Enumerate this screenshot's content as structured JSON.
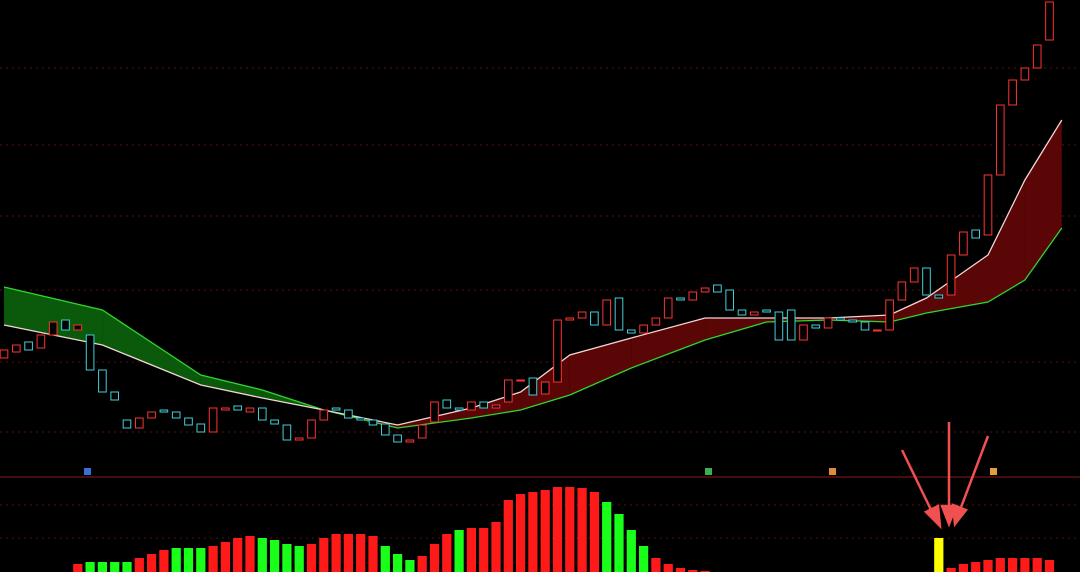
{
  "chart_data": [
    {
      "type": "candlestick",
      "x": [
        0,
        1,
        2,
        3,
        4,
        5,
        6,
        7,
        8,
        9,
        10,
        11,
        12,
        13,
        14,
        15,
        16,
        17,
        18,
        19,
        20,
        21,
        22,
        23,
        24,
        25,
        26,
        27,
        28,
        29,
        30,
        31,
        32,
        33,
        34,
        35,
        36,
        37,
        38,
        39,
        40,
        41,
        42,
        43,
        44,
        45,
        46,
        47,
        48,
        49,
        50,
        51,
        52,
        53,
        54,
        55,
        56,
        57,
        58,
        59,
        60,
        61,
        62,
        63,
        64,
        65,
        66,
        67,
        68,
        69,
        70,
        71,
        72,
        73,
        74,
        75,
        76,
        77,
        78,
        79,
        80,
        81,
        82,
        83,
        84,
        85
      ],
      "open": [
        122,
        128,
        138,
        132,
        145,
        160,
        150,
        145,
        110,
        88,
        60,
        52,
        62,
        70,
        68,
        62,
        56,
        48,
        70,
        74,
        68,
        72,
        60,
        55,
        40,
        42,
        60,
        72,
        70,
        62,
        60,
        56,
        45,
        38,
        42,
        58,
        80,
        72,
        70,
        78,
        72,
        78,
        100,
        102,
        86,
        98,
        160,
        162,
        168,
        155,
        182,
        150,
        147,
        155,
        162,
        182,
        180,
        188,
        195,
        190,
        170,
        165,
        170,
        168,
        170,
        140,
        155,
        152,
        162,
        160,
        158,
        150,
        150,
        180,
        198,
        212,
        185,
        185,
        225,
        250,
        245,
        305,
        375,
        400,
        412,
        440
      ],
      "close": [
        130,
        135,
        130,
        145,
        158,
        150,
        155,
        110,
        88,
        80,
        52,
        62,
        68,
        68,
        62,
        55,
        48,
        72,
        72,
        70,
        72,
        60,
        56,
        40,
        42,
        60,
        70,
        70,
        62,
        60,
        55,
        45,
        38,
        40,
        55,
        78,
        72,
        70,
        78,
        72,
        75,
        100,
        100,
        85,
        98,
        160,
        162,
        168,
        155,
        180,
        150,
        147,
        155,
        162,
        182,
        180,
        188,
        192,
        188,
        170,
        165,
        168,
        168,
        140,
        140,
        155,
        152,
        162,
        160,
        158,
        150,
        150,
        180,
        198,
        212,
        185,
        182,
        225,
        248,
        242,
        305,
        375,
        400,
        412,
        435,
        478
      ],
      "up_color": "#ff3232",
      "down_color": "#3fd0d8",
      "band": {
        "x": [
          0,
          8,
          16,
          21,
          26,
          32,
          38,
          42,
          46,
          51,
          57,
          62,
          67,
          72,
          75,
          80,
          83,
          86
        ],
        "fast": [
          155,
          135,
          95,
          82,
          70,
          55,
          72,
          88,
          125,
          142,
          162,
          162,
          162,
          165,
          182,
          225,
          300,
          360
        ],
        "slow": [
          193,
          170,
          105,
          90,
          70,
          52,
          62,
          70,
          85,
          112,
          140,
          158,
          160,
          158,
          167,
          178,
          200,
          252
        ],
        "fast_color": "#f2d6d6",
        "slow_color": "#2ed62e",
        "rise_fill": "#5a0606",
        "fall_fill": "#0b5a0b"
      },
      "xlim": [
        -0.325,
        87.48
      ],
      "ylim": [
        0,
        480
      ]
    },
    {
      "type": "bar",
      "x": [
        6,
        7,
        8,
        9,
        10,
        11,
        12,
        13,
        14,
        15,
        16,
        17,
        18,
        19,
        20,
        21,
        22,
        23,
        24,
        25,
        26,
        27,
        28,
        29,
        30,
        31,
        32,
        33,
        34,
        35,
        36,
        37,
        38,
        39,
        40,
        41,
        42,
        43,
        44,
        45,
        46,
        47,
        48,
        49,
        50,
        51,
        52,
        53,
        54,
        55,
        56,
        57,
        76,
        77,
        78,
        79,
        80,
        81,
        82,
        83,
        84,
        85
      ],
      "values": [
        8,
        10,
        10,
        10,
        10,
        14,
        18,
        22,
        24,
        24,
        24,
        26,
        30,
        34,
        36,
        34,
        32,
        28,
        26,
        28,
        34,
        38,
        38,
        38,
        36,
        26,
        18,
        12,
        16,
        28,
        38,
        42,
        44,
        44,
        50,
        72,
        78,
        80,
        82,
        85,
        85,
        84,
        80,
        70,
        58,
        42,
        26,
        14,
        8,
        4,
        2,
        1,
        34,
        4,
        8,
        10,
        12,
        14,
        14,
        14,
        14,
        12
      ],
      "colors": [
        "#ff1a1a",
        "#1aff1a",
        "#1aff1a",
        "#1aff1a",
        "#1aff1a",
        "#ff1a1a",
        "#ff1a1a",
        "#ff1a1a",
        "#1aff1a",
        "#1aff1a",
        "#1aff1a",
        "#ff1a1a",
        "#ff1a1a",
        "#ff1a1a",
        "#ff1a1a",
        "#1aff1a",
        "#1aff1a",
        "#1aff1a",
        "#1aff1a",
        "#ff1a1a",
        "#ff1a1a",
        "#ff1a1a",
        "#ff1a1a",
        "#ff1a1a",
        "#ff1a1a",
        "#1aff1a",
        "#1aff1a",
        "#1aff1a",
        "#ff1a1a",
        "#ff1a1a",
        "#ff1a1a",
        "#1aff1a",
        "#ff1a1a",
        "#ff1a1a",
        "#ff1a1a",
        "#ff1a1a",
        "#ff1a1a",
        "#ff1a1a",
        "#ff1a1a",
        "#ff1a1a",
        "#ff1a1a",
        "#ff1a1a",
        "#ff1a1a",
        "#1aff1a",
        "#1aff1a",
        "#1aff1a",
        "#1aff1a",
        "#ff1a1a",
        "#ff1a1a",
        "#ff1a1a",
        "#ff1a1a",
        "#ff1a1a",
        "#ffff00",
        "#ff1a1a",
        "#ff1a1a",
        "#ff1a1a",
        "#ff1a1a",
        "#ff1a1a",
        "#ff1a1a",
        "#ff1a1a",
        "#ff1a1a",
        "#ff1a1a"
      ],
      "xlim": [
        -0.325,
        87.48
      ],
      "ylim": [
        0,
        90
      ]
    }
  ]
}
